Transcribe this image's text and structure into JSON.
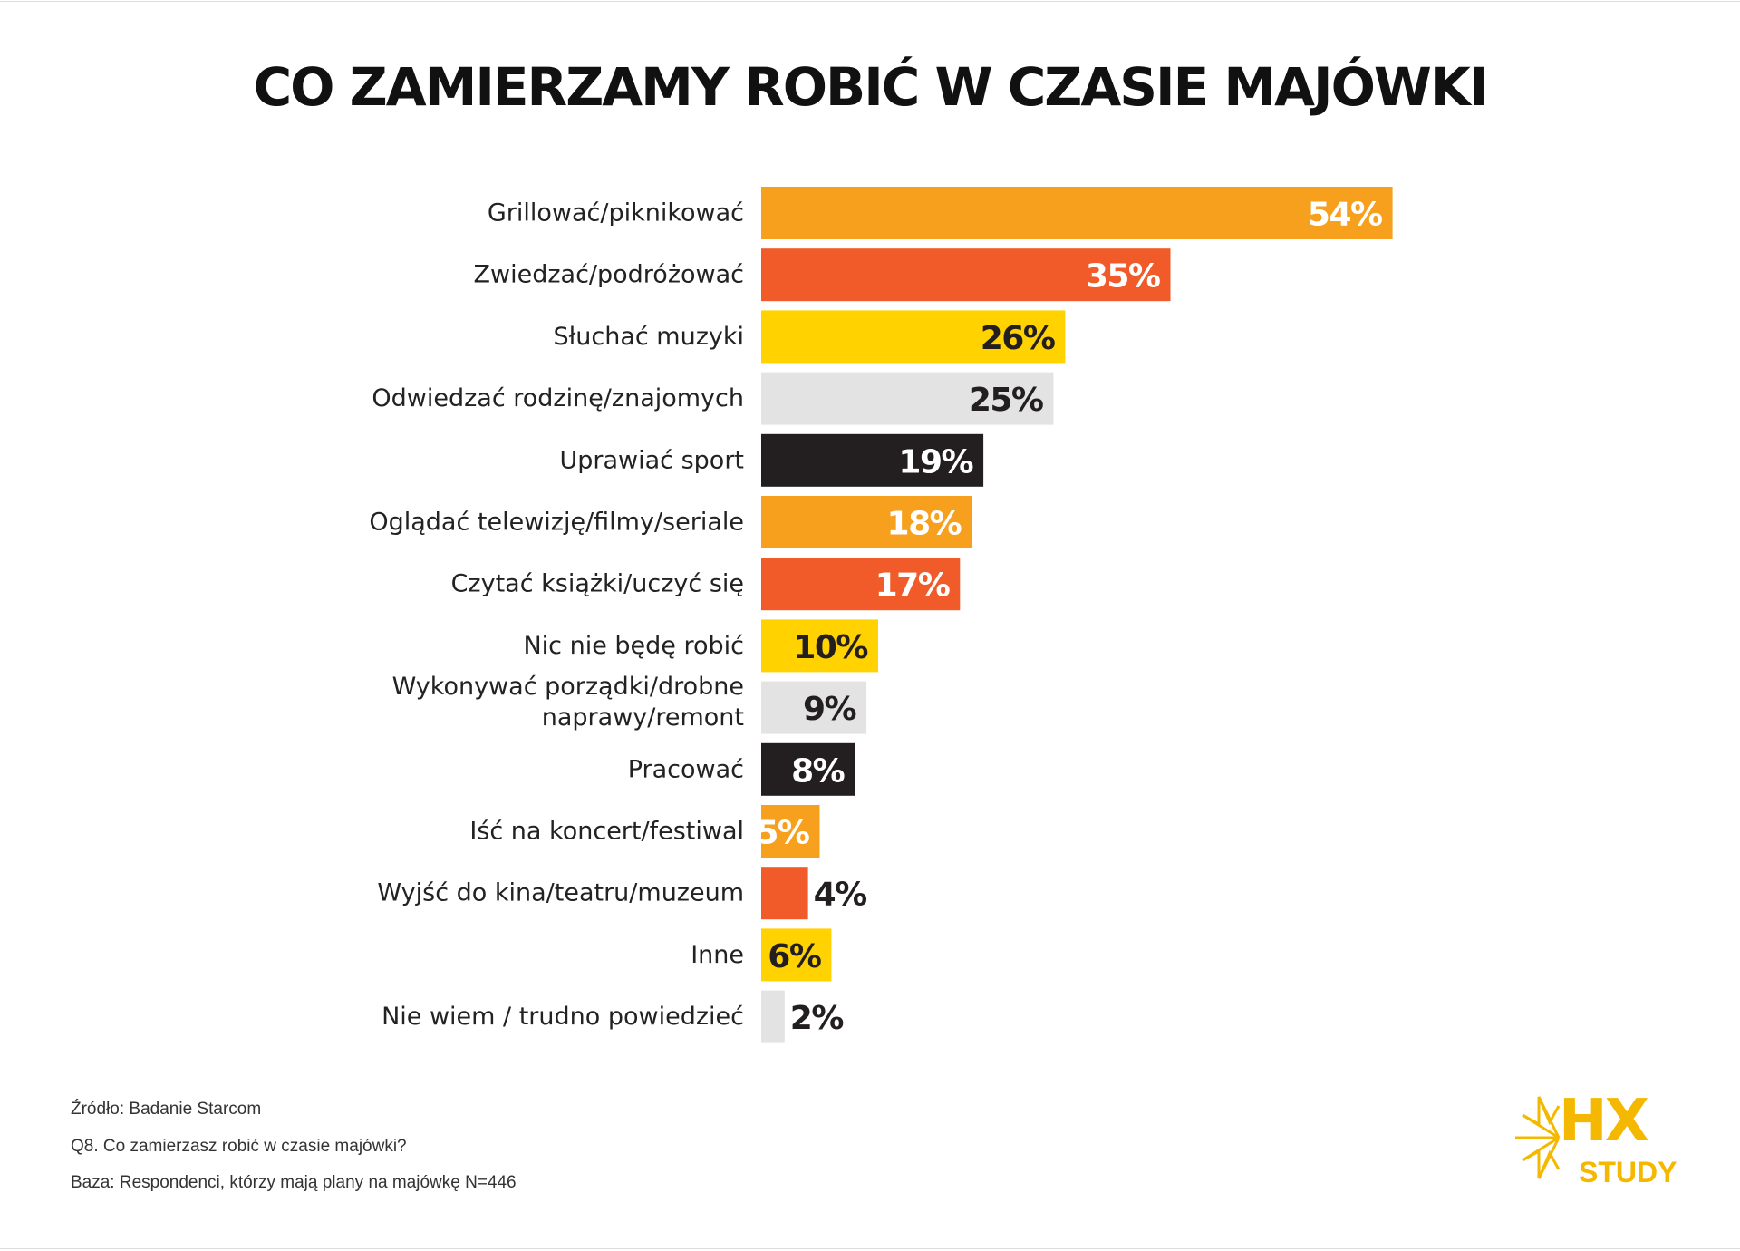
{
  "title": "CO ZAMIERZAMY ROBIĆ W CZASIE MAJÓWKI",
  "footnotes": {
    "source": "Źródło: Badanie Starcom",
    "question": "Q8. Co zamierzasz robić w czasie majówki?",
    "base": "Baza: Respondenci, którzy mają plany na majówkę N=446"
  },
  "logo": {
    "main": "HX",
    "sub": "STUDY"
  },
  "colors": {
    "orange": "#F7A01E",
    "red": "#F15A29",
    "yellow": "#FFD200",
    "grey": "#E3E3E3",
    "black": "#231F20"
  },
  "chart_data": {
    "type": "bar",
    "orientation": "horizontal",
    "unit": "%",
    "categories": [
      [
        "Grillować/piknikować"
      ],
      [
        "Zwiedzać/podróżować"
      ],
      [
        "Słuchać muzyki"
      ],
      [
        "Odwiedzać rodzinę/znajomych"
      ],
      [
        "Uprawiać sport"
      ],
      [
        "Oglądać telewizję/filmy/seriale"
      ],
      [
        "Czytać książki/uczyć się"
      ],
      [
        "Nic nie będę robić"
      ],
      [
        "Wykonywać porządki/drobne",
        "naprawy/remont"
      ],
      [
        "Pracować"
      ],
      [
        "Iść na koncert/festiwal"
      ],
      [
        "Wyjść do kina/teatru/muzeum"
      ],
      [
        "Inne"
      ],
      [
        "Nie wiem / trudno powiedzieć"
      ]
    ],
    "values": [
      54,
      35,
      26,
      25,
      19,
      18,
      17,
      10,
      9,
      8,
      5,
      4,
      6,
      2
    ],
    "value_labels": [
      "54%",
      "35%",
      "26%",
      "25%",
      "19%",
      "18%",
      "17%",
      "10%",
      "9%",
      "8%",
      "5%",
      "4%",
      "6%",
      "2%"
    ],
    "bar_colors": [
      "orange",
      "red",
      "yellow",
      "grey",
      "black",
      "orange",
      "red",
      "yellow",
      "grey",
      "black",
      "orange",
      "red",
      "yellow",
      "grey"
    ],
    "grid": false,
    "legend": "none"
  }
}
